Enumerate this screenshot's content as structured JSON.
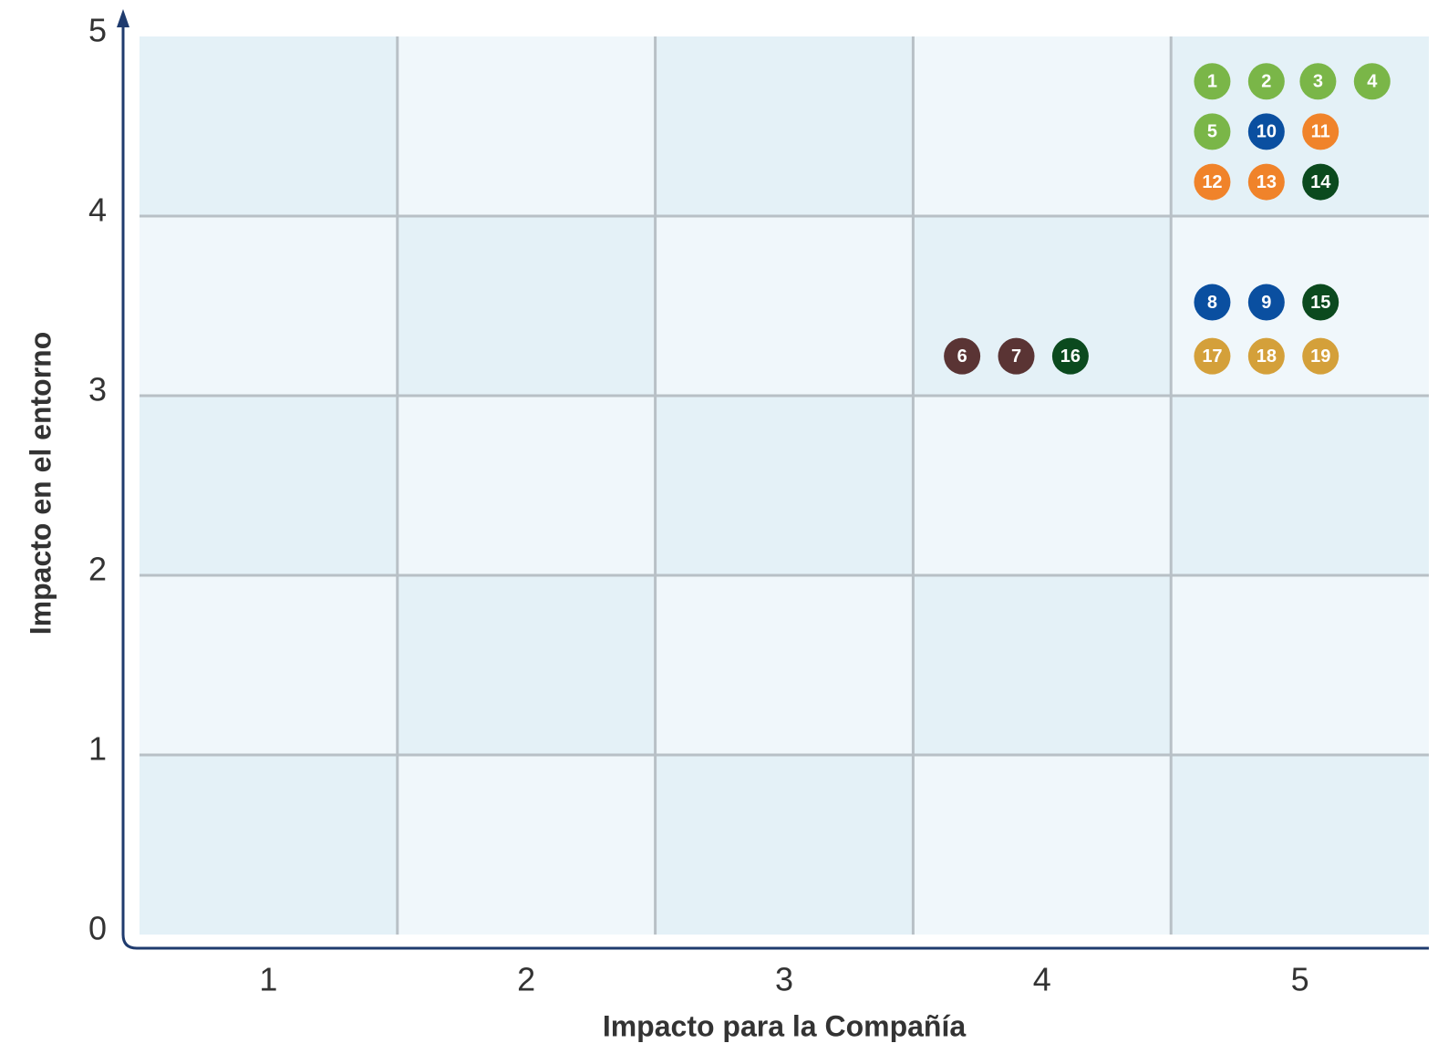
{
  "chart_data": {
    "type": "scatter",
    "x_label": "Impacto para la Compañía",
    "y_label": "Impacto en el entorno",
    "xlim": [
      0.5,
      5.5
    ],
    "xticks": [
      1,
      2,
      3,
      4,
      5
    ],
    "ylim": [
      0,
      5
    ],
    "yticks": [
      0,
      1,
      2,
      3,
      4,
      5
    ],
    "grid": true,
    "series": [
      {
        "color": "#7ab648",
        "labels": [
          "1",
          "2",
          "3",
          "4",
          "5"
        ],
        "x": [
          4.66,
          4.87,
          5.07,
          5.28,
          4.66
        ],
        "values": [
          4.75,
          4.75,
          4.75,
          4.75,
          4.47
        ]
      },
      {
        "color": "#0a4fa0",
        "labels": [
          "10",
          "8",
          "9"
        ],
        "x": [
          4.87,
          4.66,
          4.87
        ],
        "values": [
          4.47,
          3.52,
          3.52
        ]
      },
      {
        "color": "#f0832a",
        "labels": [
          "11",
          "12",
          "13"
        ],
        "x": [
          5.08,
          4.66,
          4.87
        ],
        "values": [
          4.47,
          4.19,
          4.19
        ]
      },
      {
        "color": "#0b4a1e",
        "labels": [
          "14",
          "15",
          "16"
        ],
        "x": [
          5.08,
          5.08,
          4.11
        ],
        "values": [
          4.19,
          3.52,
          3.22
        ]
      },
      {
        "color": "#5a3434",
        "labels": [
          "6",
          "7"
        ],
        "x": [
          3.69,
          3.9
        ],
        "values": [
          3.22,
          3.22
        ]
      },
      {
        "color": "#d4a03a",
        "labels": [
          "17",
          "18",
          "19"
        ],
        "x": [
          4.66,
          4.87,
          5.08
        ],
        "values": [
          3.22,
          3.22,
          3.22
        ]
      }
    ]
  }
}
